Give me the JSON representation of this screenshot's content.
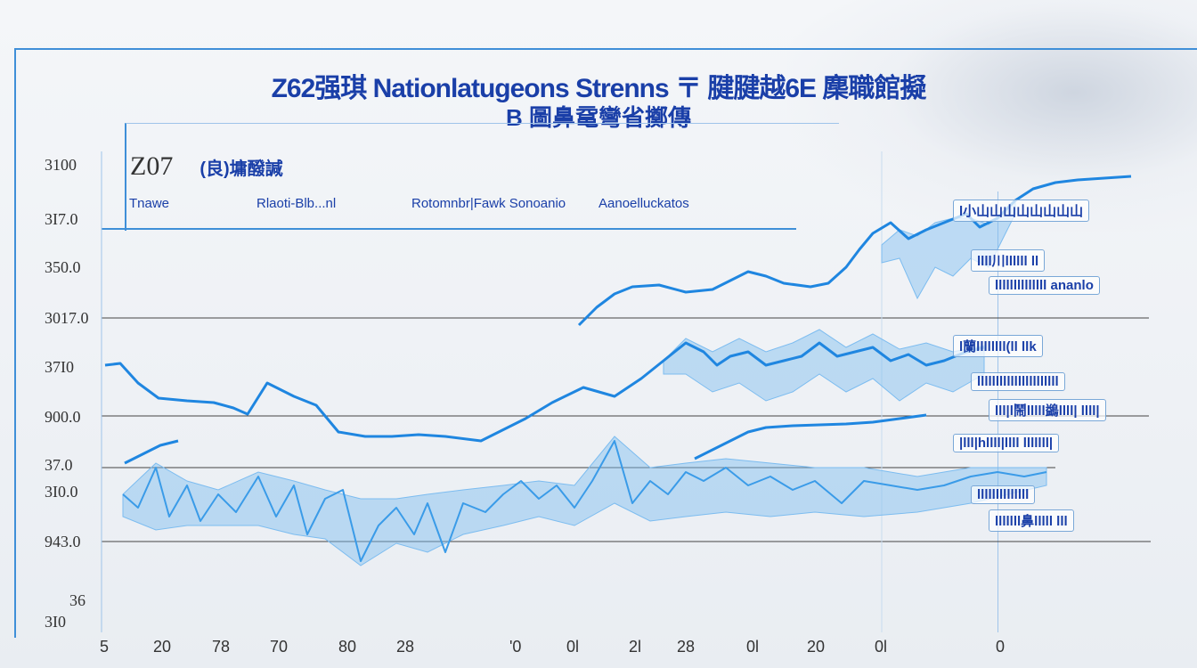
{
  "title": "Z62强琪 Nationlatugeons Strenns 〒 腱腱越6E 䴢職館擬",
  "subtitle": "B 圖鼻鼋彎省擲傳",
  "panel": {
    "title": "Z07",
    "subtitle": "(良)墉醱諴",
    "legend": [
      "Tnawe",
      "Rlaoti-Blb...nl",
      "Rotomnbr|Fawk Sonoanio",
      "Aanoelluckatos"
    ]
  },
  "right_labels": [
    {
      "text": "l小山山山山山山山山",
      "y": 224
    },
    {
      "text": "llll川llllll ll",
      "y": 280
    },
    {
      "text": "llllllllllllll ananlo",
      "y": 310
    },
    {
      "text": "l蘭llllllll(ll llk",
      "y": 376
    },
    {
      "text": "llllllllllllllllllllll",
      "y": 418
    },
    {
      "text": "lll|l鬧lllll鷁llll| llll|",
      "y": 448
    },
    {
      "text": "|lll|hllll|llll lllllll|",
      "y": 487
    },
    {
      "text": "llllllllllllll",
      "y": 545
    },
    {
      "text": "lllllll鼻lllll lll",
      "y": 572
    }
  ],
  "colors": {
    "accent": "#1a3fa8",
    "line": "#1f86e0",
    "band": "#7cbcf0",
    "grid": "#444444"
  },
  "chart_data": {
    "type": "line",
    "title": "Z62强琪 Nationlatugeons Strenns 〒 腱腱越6E 䴢職館擬",
    "y_ticks": [
      "3100",
      "3I7.0",
      "350.0",
      "3017.0",
      "37I0",
      "900.0",
      "37.0",
      "3I0.0",
      "943.0",
      "36",
      "3I0"
    ],
    "x_ticks": [
      "5",
      "20",
      "78",
      "70",
      "80",
      "28",
      "'0",
      "0l",
      "2l",
      "28",
      "0l",
      "20",
      "0l",
      "0"
    ],
    "series": [
      {
        "values": [
          [
            118,
            410
          ],
          [
            135,
            408
          ],
          [
            155,
            430
          ],
          [
            178,
            447
          ],
          [
            210,
            450
          ],
          [
            240,
            452
          ],
          [
            262,
            458
          ],
          [
            278,
            465
          ],
          [
            300,
            430
          ],
          [
            330,
            445
          ],
          [
            355,
            455
          ],
          [
            380,
            485
          ],
          [
            410,
            490
          ],
          [
            440,
            490
          ],
          [
            470,
            488
          ],
          [
            500,
            490
          ],
          [
            540,
            495
          ],
          [
            560,
            485
          ],
          [
            590,
            470
          ],
          [
            620,
            452
          ],
          [
            655,
            435
          ],
          [
            690,
            445
          ],
          [
            720,
            425
          ],
          [
            745,
            405
          ],
          [
            770,
            385
          ],
          [
            790,
            395
          ],
          [
            805,
            410
          ],
          [
            820,
            400
          ],
          [
            840,
            395
          ],
          [
            860,
            410
          ],
          [
            880,
            405
          ],
          [
            900,
            400
          ],
          [
            920,
            385
          ],
          [
            940,
            400
          ],
          [
            960,
            395
          ],
          [
            980,
            390
          ],
          [
            1000,
            405
          ],
          [
            1020,
            398
          ],
          [
            1040,
            410
          ],
          [
            1060,
            405
          ],
          [
            1085,
            395
          ],
          [
            1105,
            390
          ]
        ]
      },
      {
        "values": [
          [
            650,
            365
          ],
          [
            670,
            345
          ],
          [
            690,
            330
          ],
          [
            710,
            322
          ],
          [
            740,
            320
          ],
          [
            770,
            328
          ],
          [
            800,
            325
          ],
          [
            820,
            315
          ],
          [
            840,
            305
          ],
          [
            860,
            310
          ],
          [
            880,
            318
          ],
          [
            910,
            322
          ],
          [
            930,
            318
          ],
          [
            950,
            300
          ],
          [
            965,
            280
          ],
          [
            980,
            262
          ],
          [
            1000,
            250
          ],
          [
            1020,
            268
          ],
          [
            1040,
            258
          ],
          [
            1060,
            250
          ],
          [
            1085,
            240
          ],
          [
            1100,
            255
          ],
          [
            1120,
            245
          ],
          [
            1140,
            225
          ],
          [
            1160,
            212
          ],
          [
            1185,
            205
          ],
          [
            1210,
            202
          ],
          [
            1240,
            200
          ],
          [
            1270,
            198
          ]
        ]
      },
      {
        "values": [
          [
            140,
            520
          ],
          [
            160,
            510
          ],
          [
            180,
            500
          ],
          [
            200,
            495
          ]
        ]
      },
      {
        "values": [
          [
            780,
            515
          ],
          [
            800,
            505
          ],
          [
            820,
            495
          ],
          [
            840,
            485
          ],
          [
            860,
            480
          ],
          [
            890,
            478
          ],
          [
            920,
            477
          ],
          [
            950,
            476
          ],
          [
            980,
            474
          ],
          [
            1010,
            470
          ],
          [
            1040,
            466
          ]
        ]
      },
      {
        "values": [
          [
            138,
            555
          ],
          [
            155,
            570
          ],
          [
            175,
            525
          ],
          [
            190,
            580
          ],
          [
            210,
            545
          ],
          [
            225,
            585
          ],
          [
            245,
            555
          ],
          [
            265,
            575
          ],
          [
            290,
            535
          ],
          [
            310,
            580
          ],
          [
            330,
            545
          ],
          [
            345,
            600
          ],
          [
            365,
            560
          ],
          [
            385,
            550
          ],
          [
            405,
            630
          ],
          [
            425,
            590
          ],
          [
            445,
            570
          ],
          [
            465,
            600
          ],
          [
            480,
            565
          ],
          [
            500,
            620
          ],
          [
            520,
            565
          ],
          [
            545,
            575
          ],
          [
            565,
            555
          ],
          [
            585,
            540
          ],
          [
            605,
            560
          ],
          [
            625,
            545
          ],
          [
            645,
            570
          ],
          [
            665,
            540
          ],
          [
            690,
            495
          ],
          [
            710,
            565
          ],
          [
            730,
            540
          ],
          [
            750,
            555
          ],
          [
            770,
            530
          ],
          [
            790,
            540
          ],
          [
            815,
            525
          ],
          [
            840,
            545
          ],
          [
            865,
            535
          ],
          [
            890,
            550
          ],
          [
            915,
            540
          ],
          [
            945,
            565
          ],
          [
            970,
            540
          ],
          [
            1000,
            545
          ],
          [
            1030,
            550
          ],
          [
            1060,
            545
          ],
          [
            1090,
            535
          ],
          [
            1120,
            530
          ],
          [
            1150,
            535
          ],
          [
            1175,
            530
          ]
        ]
      }
    ],
    "band_series": [
      {
        "upper": [
          [
            745,
            405
          ],
          [
            770,
            380
          ],
          [
            800,
            395
          ],
          [
            830,
            380
          ],
          [
            860,
            395
          ],
          [
            890,
            385
          ],
          [
            920,
            370
          ],
          [
            950,
            390
          ],
          [
            980,
            375
          ],
          [
            1010,
            392
          ],
          [
            1040,
            385
          ],
          [
            1070,
            395
          ],
          [
            1105,
            388
          ]
        ],
        "lower": [
          [
            745,
            420
          ],
          [
            770,
            420
          ],
          [
            800,
            440
          ],
          [
            830,
            430
          ],
          [
            860,
            450
          ],
          [
            890,
            440
          ],
          [
            920,
            420
          ],
          [
            950,
            440
          ],
          [
            980,
            425
          ],
          [
            1010,
            450
          ],
          [
            1040,
            430
          ],
          [
            1070,
            440
          ],
          [
            1105,
            420
          ]
        ]
      },
      {
        "upper": [
          [
            990,
            275
          ],
          [
            1010,
            258
          ],
          [
            1030,
            265
          ],
          [
            1050,
            250
          ],
          [
            1070,
            245
          ],
          [
            1090,
            245
          ],
          [
            1110,
            252
          ],
          [
            1140,
            225
          ]
        ],
        "lower": [
          [
            990,
            295
          ],
          [
            1010,
            290
          ],
          [
            1030,
            335
          ],
          [
            1050,
            300
          ],
          [
            1070,
            310
          ],
          [
            1090,
            290
          ],
          [
            1110,
            300
          ],
          [
            1140,
            240
          ]
        ]
      },
      {
        "upper": [
          [
            138,
            555
          ],
          [
            175,
            520
          ],
          [
            210,
            540
          ],
          [
            245,
            550
          ],
          [
            290,
            530
          ],
          [
            330,
            540
          ],
          [
            365,
            550
          ],
          [
            405,
            560
          ],
          [
            445,
            560
          ],
          [
            480,
            555
          ],
          [
            520,
            550
          ],
          [
            565,
            545
          ],
          [
            605,
            540
          ],
          [
            645,
            545
          ],
          [
            690,
            490
          ],
          [
            730,
            525
          ],
          [
            770,
            520
          ],
          [
            815,
            515
          ],
          [
            865,
            520
          ],
          [
            915,
            525
          ],
          [
            970,
            525
          ],
          [
            1030,
            535
          ],
          [
            1090,
            525
          ],
          [
            1175,
            525
          ]
        ],
        "lower": [
          [
            138,
            580
          ],
          [
            175,
            595
          ],
          [
            210,
            590
          ],
          [
            245,
            590
          ],
          [
            290,
            590
          ],
          [
            330,
            600
          ],
          [
            365,
            605
          ],
          [
            405,
            635
          ],
          [
            445,
            610
          ],
          [
            480,
            620
          ],
          [
            520,
            600
          ],
          [
            565,
            590
          ],
          [
            605,
            580
          ],
          [
            645,
            590
          ],
          [
            690,
            565
          ],
          [
            730,
            585
          ],
          [
            770,
            580
          ],
          [
            815,
            575
          ],
          [
            865,
            580
          ],
          [
            915,
            575
          ],
          [
            970,
            580
          ],
          [
            1030,
            575
          ],
          [
            1090,
            565
          ],
          [
            1175,
            545
          ]
        ]
      }
    ],
    "ylim": [
      0,
      1
    ],
    "grid": true,
    "legend_placement": "top"
  }
}
